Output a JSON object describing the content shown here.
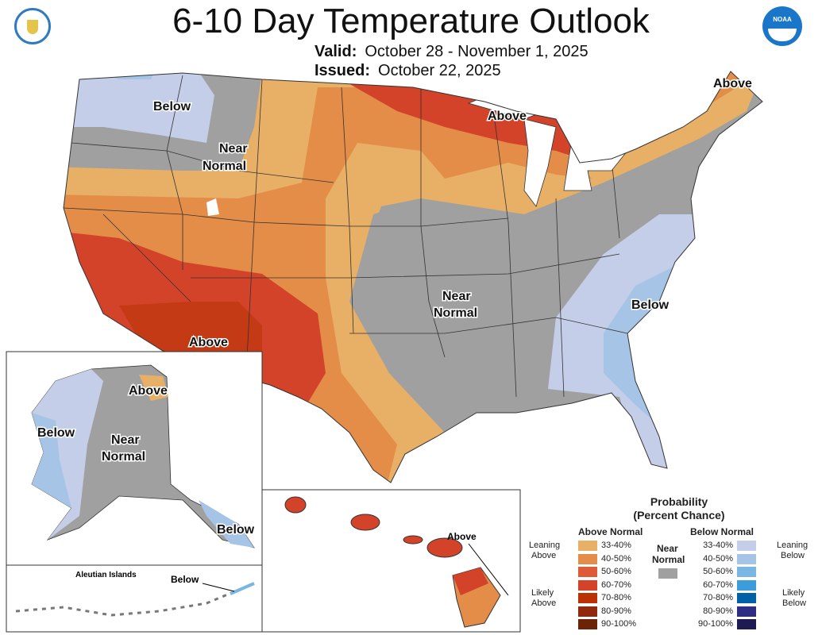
{
  "header": {
    "title": "6-10 Day Temperature Outlook",
    "valid_label": "Valid:",
    "valid_value": "October 28 - November 1, 2025",
    "issued_label": "Issued:",
    "issued_value": "October 22, 2025",
    "logo_left": "department-of-commerce-seal",
    "logo_right": "noaa-logo",
    "logo_right_text": "NOAA"
  },
  "map": {
    "labels": {
      "nw_below": "Below",
      "nw_near": "Near",
      "nw_normal": "Normal",
      "sw_above": "Above",
      "glakes_above": "Above",
      "maine_above": "Above",
      "central_near": "Near",
      "central_normal": "Normal",
      "se_below": "Below",
      "ak_above": "Above",
      "ak_below": "Below",
      "ak_near": "Near",
      "ak_normal": "Normal",
      "ak_se_below": "Below",
      "aleutian_title": "Aleutian Islands",
      "aleutian_below": "Below",
      "hi_above": "Above"
    }
  },
  "legend": {
    "title1": "Probability",
    "title2": "(Percent Chance)",
    "above_header": "Above Normal",
    "below_header": "Below Normal",
    "near_1": "Near",
    "near_2": "Normal",
    "near_color": "#a0a0a0",
    "leaning_above_1": "Leaning",
    "leaning_above_2": "Above",
    "likely_above_1": "Likely",
    "likely_above_2": "Above",
    "leaning_below_1": "Leaning",
    "leaning_below_2": "Below",
    "likely_below_1": "Likely",
    "likely_below_2": "Below",
    "above": [
      {
        "range": "33-40%",
        "color": "#e8b066"
      },
      {
        "range": "40-50%",
        "color": "#e38d48"
      },
      {
        "range": "50-60%",
        "color": "#df5a36"
      },
      {
        "range": "60-70%",
        "color": "#d3432a"
      },
      {
        "range": "70-80%",
        "color": "#bb3104"
      },
      {
        "range": "80-90%",
        "color": "#93290c"
      },
      {
        "range": "90-100%",
        "color": "#6c2307"
      }
    ],
    "below": [
      {
        "range": "33-40%",
        "color": "#c4cee8"
      },
      {
        "range": "40-50%",
        "color": "#a6c4e6"
      },
      {
        "range": "50-60%",
        "color": "#7ab6e4"
      },
      {
        "range": "60-70%",
        "color": "#3c9cdc"
      },
      {
        "range": "70-80%",
        "color": "#0061a6"
      },
      {
        "range": "80-90%",
        "color": "#302d84"
      },
      {
        "range": "90-100%",
        "color": "#1e1a52"
      }
    ]
  }
}
